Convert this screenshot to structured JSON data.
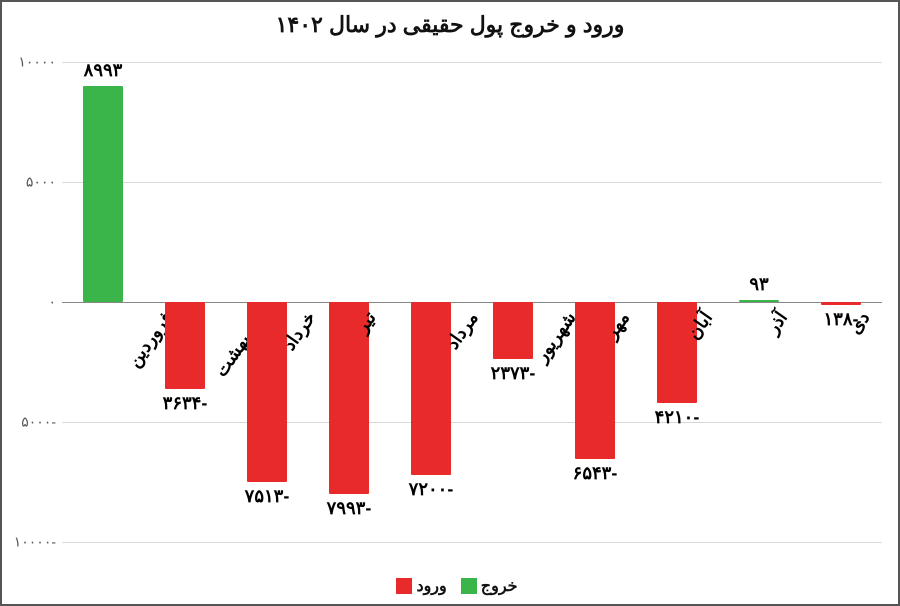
{
  "chart": {
    "type": "bar",
    "title": "ورود و خروج پول حقیقی در سال ۱۴۰۲",
    "title_fontsize": 22,
    "label_fontsize": 18,
    "value_fontsize": 18,
    "tick_fontsize": 14,
    "background_color": "#ffffff",
    "grid_color": "#d9d9d9",
    "axis_color": "#888888",
    "text_color": "#000000",
    "ylim_min": -10000,
    "ylim_max": 10000,
    "ytick_step": 5000,
    "yticks": [
      {
        "v": 10000,
        "label": "۱۰۰۰۰"
      },
      {
        "v": 5000,
        "label": "۵۰۰۰"
      },
      {
        "v": 0,
        "label": "۰"
      },
      {
        "v": -5000,
        "label": "۵۰۰۰-"
      },
      {
        "v": -10000,
        "label": "۱۰۰۰۰-"
      }
    ],
    "bar_width_ratio": 0.48,
    "categories": [
      {
        "name": "فروردین",
        "value": 8993,
        "value_label": "۸۹۹۳",
        "color": "#39b54a"
      },
      {
        "name": "اردیبهشت",
        "value": -3634,
        "value_label": "۳۶۳۴-",
        "color": "#e92a2a"
      },
      {
        "name": "خرداد",
        "value": -7513,
        "value_label": "۷۵۱۳-",
        "color": "#e92a2a"
      },
      {
        "name": "تیر",
        "value": -7993,
        "value_label": "۷۹۹۳-",
        "color": "#e92a2a"
      },
      {
        "name": "مرداد",
        "value": -7200,
        "value_label": "۷۲۰۰-",
        "color": "#e92a2a"
      },
      {
        "name": "شهریور",
        "value": -2373,
        "value_label": "۲۳۷۳-",
        "color": "#e92a2a"
      },
      {
        "name": "مهر",
        "value": -6543,
        "value_label": "۶۵۴۳-",
        "color": "#e92a2a"
      },
      {
        "name": "آبان",
        "value": -4210,
        "value_label": "۴۲۱۰-",
        "color": "#e92a2a"
      },
      {
        "name": "آذر",
        "value": 93,
        "value_label": "۹۳",
        "color": "#39b54a"
      },
      {
        "name": "دی",
        "value": -138,
        "value_label": "۱۳۸-",
        "color": "#e92a2a"
      }
    ],
    "legend": [
      {
        "label": "خروج",
        "color": "#e92a2a"
      },
      {
        "label": "ورود",
        "color": "#39b54a"
      }
    ]
  }
}
